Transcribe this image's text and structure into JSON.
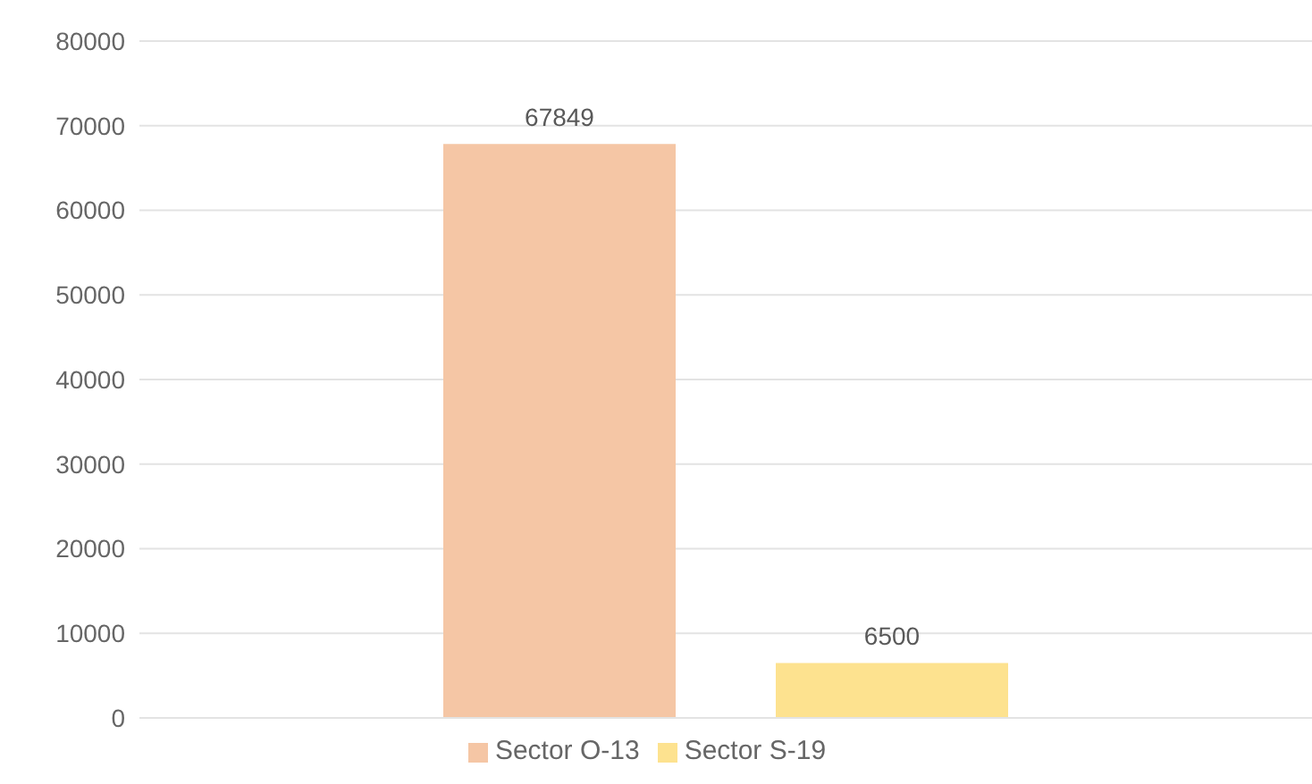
{
  "chart_data": {
    "type": "bar",
    "categories": [
      null
    ],
    "series": [
      {
        "name": "Sector O-13",
        "color": "#f5c6a5",
        "values": [
          67849
        ]
      },
      {
        "name": "Sector S-19",
        "color": "#fde28f",
        "values": [
          6500
        ]
      }
    ],
    "ylim": [
      0,
      80000
    ],
    "yticks": [
      0,
      10000,
      20000,
      30000,
      40000,
      50000,
      60000,
      70000,
      80000
    ],
    "grid": "y",
    "legend": "bottom",
    "data_labels": true,
    "tick_labels": "y"
  }
}
